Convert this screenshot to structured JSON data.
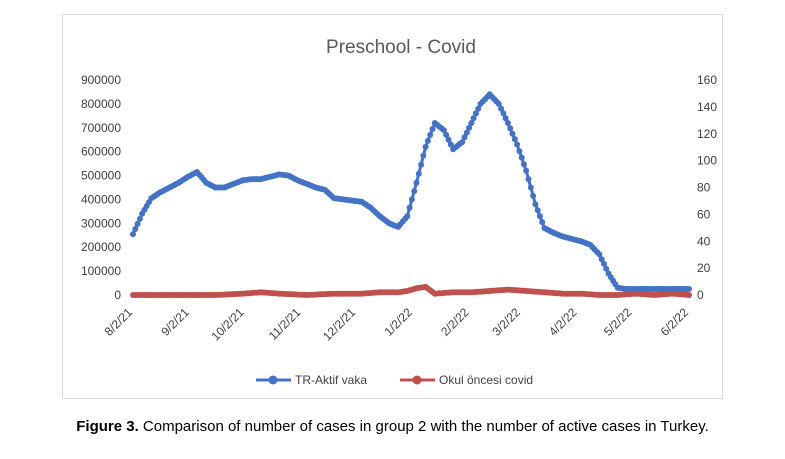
{
  "chart_data": {
    "type": "line",
    "title": "Preschool - Covid",
    "xlabel": "",
    "ylabel": "",
    "y2label": "",
    "ylim": [
      0,
      900000
    ],
    "y2lim": [
      0,
      160
    ],
    "yticks": [
      "900000",
      "800000",
      "700000",
      "600000",
      "500000",
      "400000",
      "300000",
      "200000",
      "100000",
      "0"
    ],
    "y2ticks": [
      "160",
      "140",
      "120",
      "100",
      "80",
      "60",
      "40",
      "20",
      "0"
    ],
    "xticks": [
      "8/2/21",
      "9/2/21",
      "10/2/21",
      "11/2/21",
      "12/2/21",
      "1/2/22",
      "2/2/22",
      "3/2/22",
      "4/2/22",
      "5/2/22",
      "6/2/22"
    ],
    "legend_position": "bottom",
    "grid": false,
    "series": [
      {
        "name": "TR-Aktif vaka",
        "axis": "left",
        "color": "#4472C4",
        "x": [
          "8/2/21",
          "8/7/21",
          "8/12/21",
          "8/17/21",
          "8/22/21",
          "8/27/21",
          "9/1/21",
          "9/6/21",
          "9/11/21",
          "9/16/21",
          "9/21/21",
          "9/26/21",
          "10/1/21",
          "10/6/21",
          "10/11/21",
          "10/16/21",
          "10/21/21",
          "10/26/21",
          "10/31/21",
          "11/5/21",
          "11/10/21",
          "11/15/21",
          "11/20/21",
          "11/25/21",
          "11/30/21",
          "12/5/21",
          "12/10/21",
          "12/15/21",
          "12/20/21",
          "12/25/21",
          "12/30/21",
          "1/4/22",
          "1/9/22",
          "1/14/22",
          "1/19/22",
          "1/24/22",
          "1/29/22",
          "2/3/22",
          "2/8/22",
          "2/13/22",
          "2/18/22",
          "2/23/22",
          "2/28/22",
          "3/5/22",
          "3/10/22",
          "3/15/22",
          "3/20/22",
          "3/25/22",
          "3/30/22",
          "4/4/22",
          "4/9/22",
          "4/14/22",
          "4/19/22",
          "4/24/22",
          "4/29/22",
          "5/4/22",
          "5/9/22",
          "5/14/22",
          "5/19/22",
          "5/24/22",
          "5/29/22",
          "6/2/22"
        ],
        "values": [
          255000,
          340000,
          405000,
          430000,
          450000,
          470000,
          495000,
          515000,
          470000,
          450000,
          450000,
          465000,
          480000,
          485000,
          485000,
          495000,
          505000,
          500000,
          480000,
          465000,
          450000,
          440000,
          405000,
          400000,
          395000,
          390000,
          365000,
          330000,
          300000,
          285000,
          330000,
          470000,
          620000,
          720000,
          690000,
          610000,
          640000,
          720000,
          800000,
          840000,
          800000,
          720000,
          630000,
          520000,
          380000,
          280000,
          260000,
          245000,
          235000,
          225000,
          210000,
          170000,
          90000,
          30000,
          25000,
          25000,
          25000,
          25000,
          25000,
          25000,
          25000,
          25000
        ]
      },
      {
        "name": "Okul öncesi covid",
        "axis": "right",
        "color": "#C0504D",
        "x": [
          "8/2/21",
          "8/17/21",
          "9/1/21",
          "9/16/21",
          "10/1/21",
          "10/11/21",
          "10/21/21",
          "11/5/21",
          "11/20/21",
          "12/5/21",
          "12/15/21",
          "12/25/21",
          "12/30/21",
          "1/4/22",
          "1/9/22",
          "1/14/22",
          "1/24/22",
          "2/3/22",
          "2/13/22",
          "2/23/22",
          "3/5/22",
          "3/15/22",
          "3/25/22",
          "4/4/22",
          "4/14/22",
          "4/24/22",
          "5/4/22",
          "5/14/22",
          "5/24/22",
          "6/2/22"
        ],
        "values": [
          0,
          0,
          0,
          0,
          1,
          2,
          1,
          0,
          1,
          1,
          2,
          2,
          3,
          5,
          6,
          1,
          2,
          2,
          3,
          4,
          3,
          2,
          1,
          1,
          0,
          0,
          1,
          0,
          1,
          0
        ]
      }
    ]
  },
  "caption": {
    "label": "Figure 3.",
    "text": " Comparison of number of cases in group 2 with the number of active cases in Turkey."
  }
}
